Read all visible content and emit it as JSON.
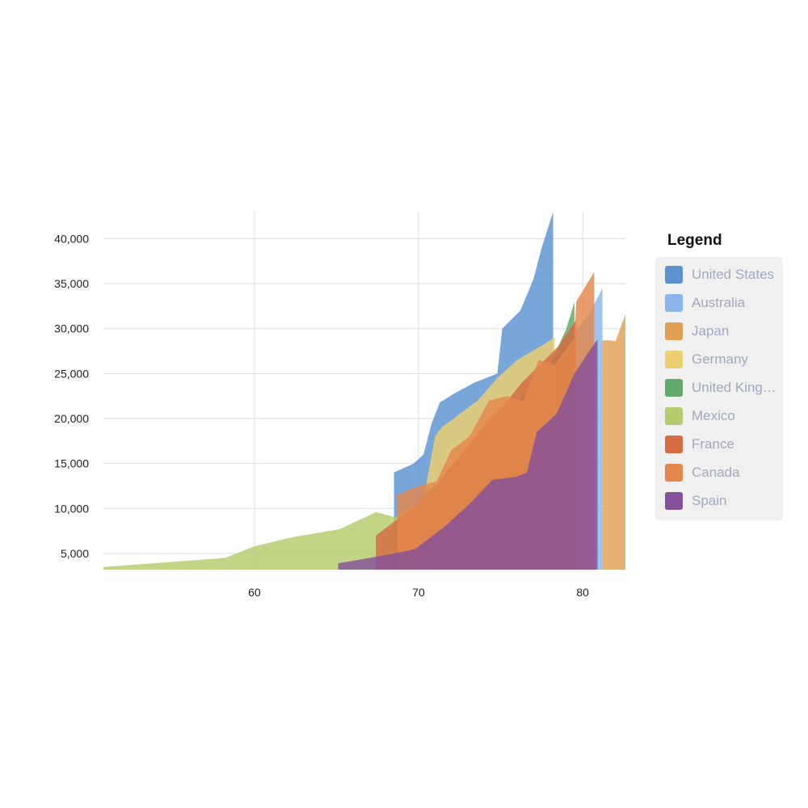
{
  "chart_data": {
    "type": "area",
    "title": "",
    "xlabel": "",
    "ylabel": "",
    "xlim": [
      50.8,
      82.6
    ],
    "ylim": [
      3200,
      43000
    ],
    "x_ticks": [
      60,
      70,
      80
    ],
    "x_tick_labels": [
      "60",
      "70",
      "80"
    ],
    "y_ticks": [
      5000,
      10000,
      15000,
      20000,
      25000,
      30000,
      35000,
      40000
    ],
    "y_tick_labels": [
      "5,000",
      "10,000",
      "15,000",
      "20,000",
      "25,000",
      "30,000",
      "35,000",
      "40,000"
    ],
    "grid": true,
    "legend_position": "right",
    "legend_title": "Legend",
    "series": [
      {
        "name": "United States",
        "color": "#5b93cf",
        "x": [
          68.5,
          68.5,
          69.7,
          70.3,
          70.8,
          71.3,
          72.2,
          73.4,
          74.8,
          75.1,
          76.2,
          77.0,
          77.5,
          78.2,
          78.2
        ],
        "y": [
          9000,
          14000,
          15000,
          16000,
          19500,
          21800,
          22800,
          24000,
          25000,
          30000,
          32000,
          35500,
          39000,
          43000,
          3200
        ]
      },
      {
        "name": "Australia",
        "color": "#8bb6ec",
        "x": [
          70.3,
          71.5,
          73.0,
          74.5,
          75.5,
          76.5,
          77.5,
          78.5,
          79.5,
          80.5,
          81.2,
          81.2
        ],
        "y": [
          11000,
          13000,
          16000,
          19000,
          21000,
          23000,
          25000,
          27000,
          29500,
          32000,
          34500,
          3200
        ]
      },
      {
        "name": "Japan",
        "color": "#e1a155",
        "x": [
          81.2,
          81.7,
          82.0,
          82.6,
          82.6
        ],
        "y": [
          28700,
          28700,
          28600,
          31600,
          3200
        ]
      },
      {
        "name": "Germany",
        "color": "#edcf6f",
        "x": [
          69.2,
          70.3,
          71.0,
          71.4,
          72.5,
          73.6,
          74.8,
          76.0,
          77.2,
          78.3,
          78.3
        ],
        "y": [
          9300,
          11000,
          18000,
          19000,
          20500,
          22000,
          24500,
          26500,
          27800,
          29000,
          3200
        ]
      },
      {
        "name": "United Kingdom",
        "color": "#63a86c",
        "x": [
          70.0,
          71.3,
          72.4,
          73.5,
          74.6,
          75.8,
          76.9,
          78.0,
          79.0,
          79.5,
          79.5
        ],
        "y": [
          11000,
          13000,
          15500,
          17500,
          19500,
          21500,
          23500,
          26000,
          30000,
          33000,
          3200
        ]
      },
      {
        "name": "Mexico",
        "color": "#b3cc6d",
        "x": [
          50.8,
          54.5,
          58.2,
          60.0,
          62.3,
          65.2,
          67.4,
          68.6,
          69.8,
          69.8
        ],
        "y": [
          3500,
          4000,
          4500,
          5800,
          6800,
          7700,
          9600,
          9000,
          10500,
          3200
        ]
      },
      {
        "name": "France",
        "color": "#d66a40",
        "x": [
          67.4,
          67.4,
          68.5,
          69.6,
          70.8,
          71.9,
          73.0,
          74.1,
          75.2,
          76.3,
          77.4,
          78.5,
          79.6,
          79.6
        ],
        "y": [
          3200,
          7000,
          8500,
          10000,
          12000,
          14500,
          17000,
          19500,
          21500,
          24000,
          26000,
          28000,
          31000,
          3200
        ]
      },
      {
        "name": "Canada",
        "color": "#e4874c",
        "x": [
          68.7,
          68.7,
          70.0,
          71.1,
          72.0,
          73.1,
          74.3,
          75.4,
          76.4,
          77.3,
          78.3,
          79.5,
          79.6,
          80.7,
          80.7
        ],
        "y": [
          3200,
          11500,
          12500,
          13000,
          16500,
          18000,
          22000,
          22500,
          22000,
          26500,
          26000,
          29000,
          33000,
          36300,
          3200
        ]
      },
      {
        "name": "Spain",
        "color": "#85519a",
        "x": [
          65.1,
          65.1,
          67.0,
          68.5,
          69.8,
          71.6,
          73.1,
          74.5,
          75.9,
          76.6,
          77.2,
          78.4,
          79.5,
          80.4,
          80.9,
          80.9
        ],
        "y": [
          3200,
          3900,
          4500,
          5000,
          5500,
          8000,
          10500,
          13200,
          13500,
          14000,
          18500,
          20500,
          25000,
          27500,
          28800,
          3200
        ]
      }
    ]
  }
}
